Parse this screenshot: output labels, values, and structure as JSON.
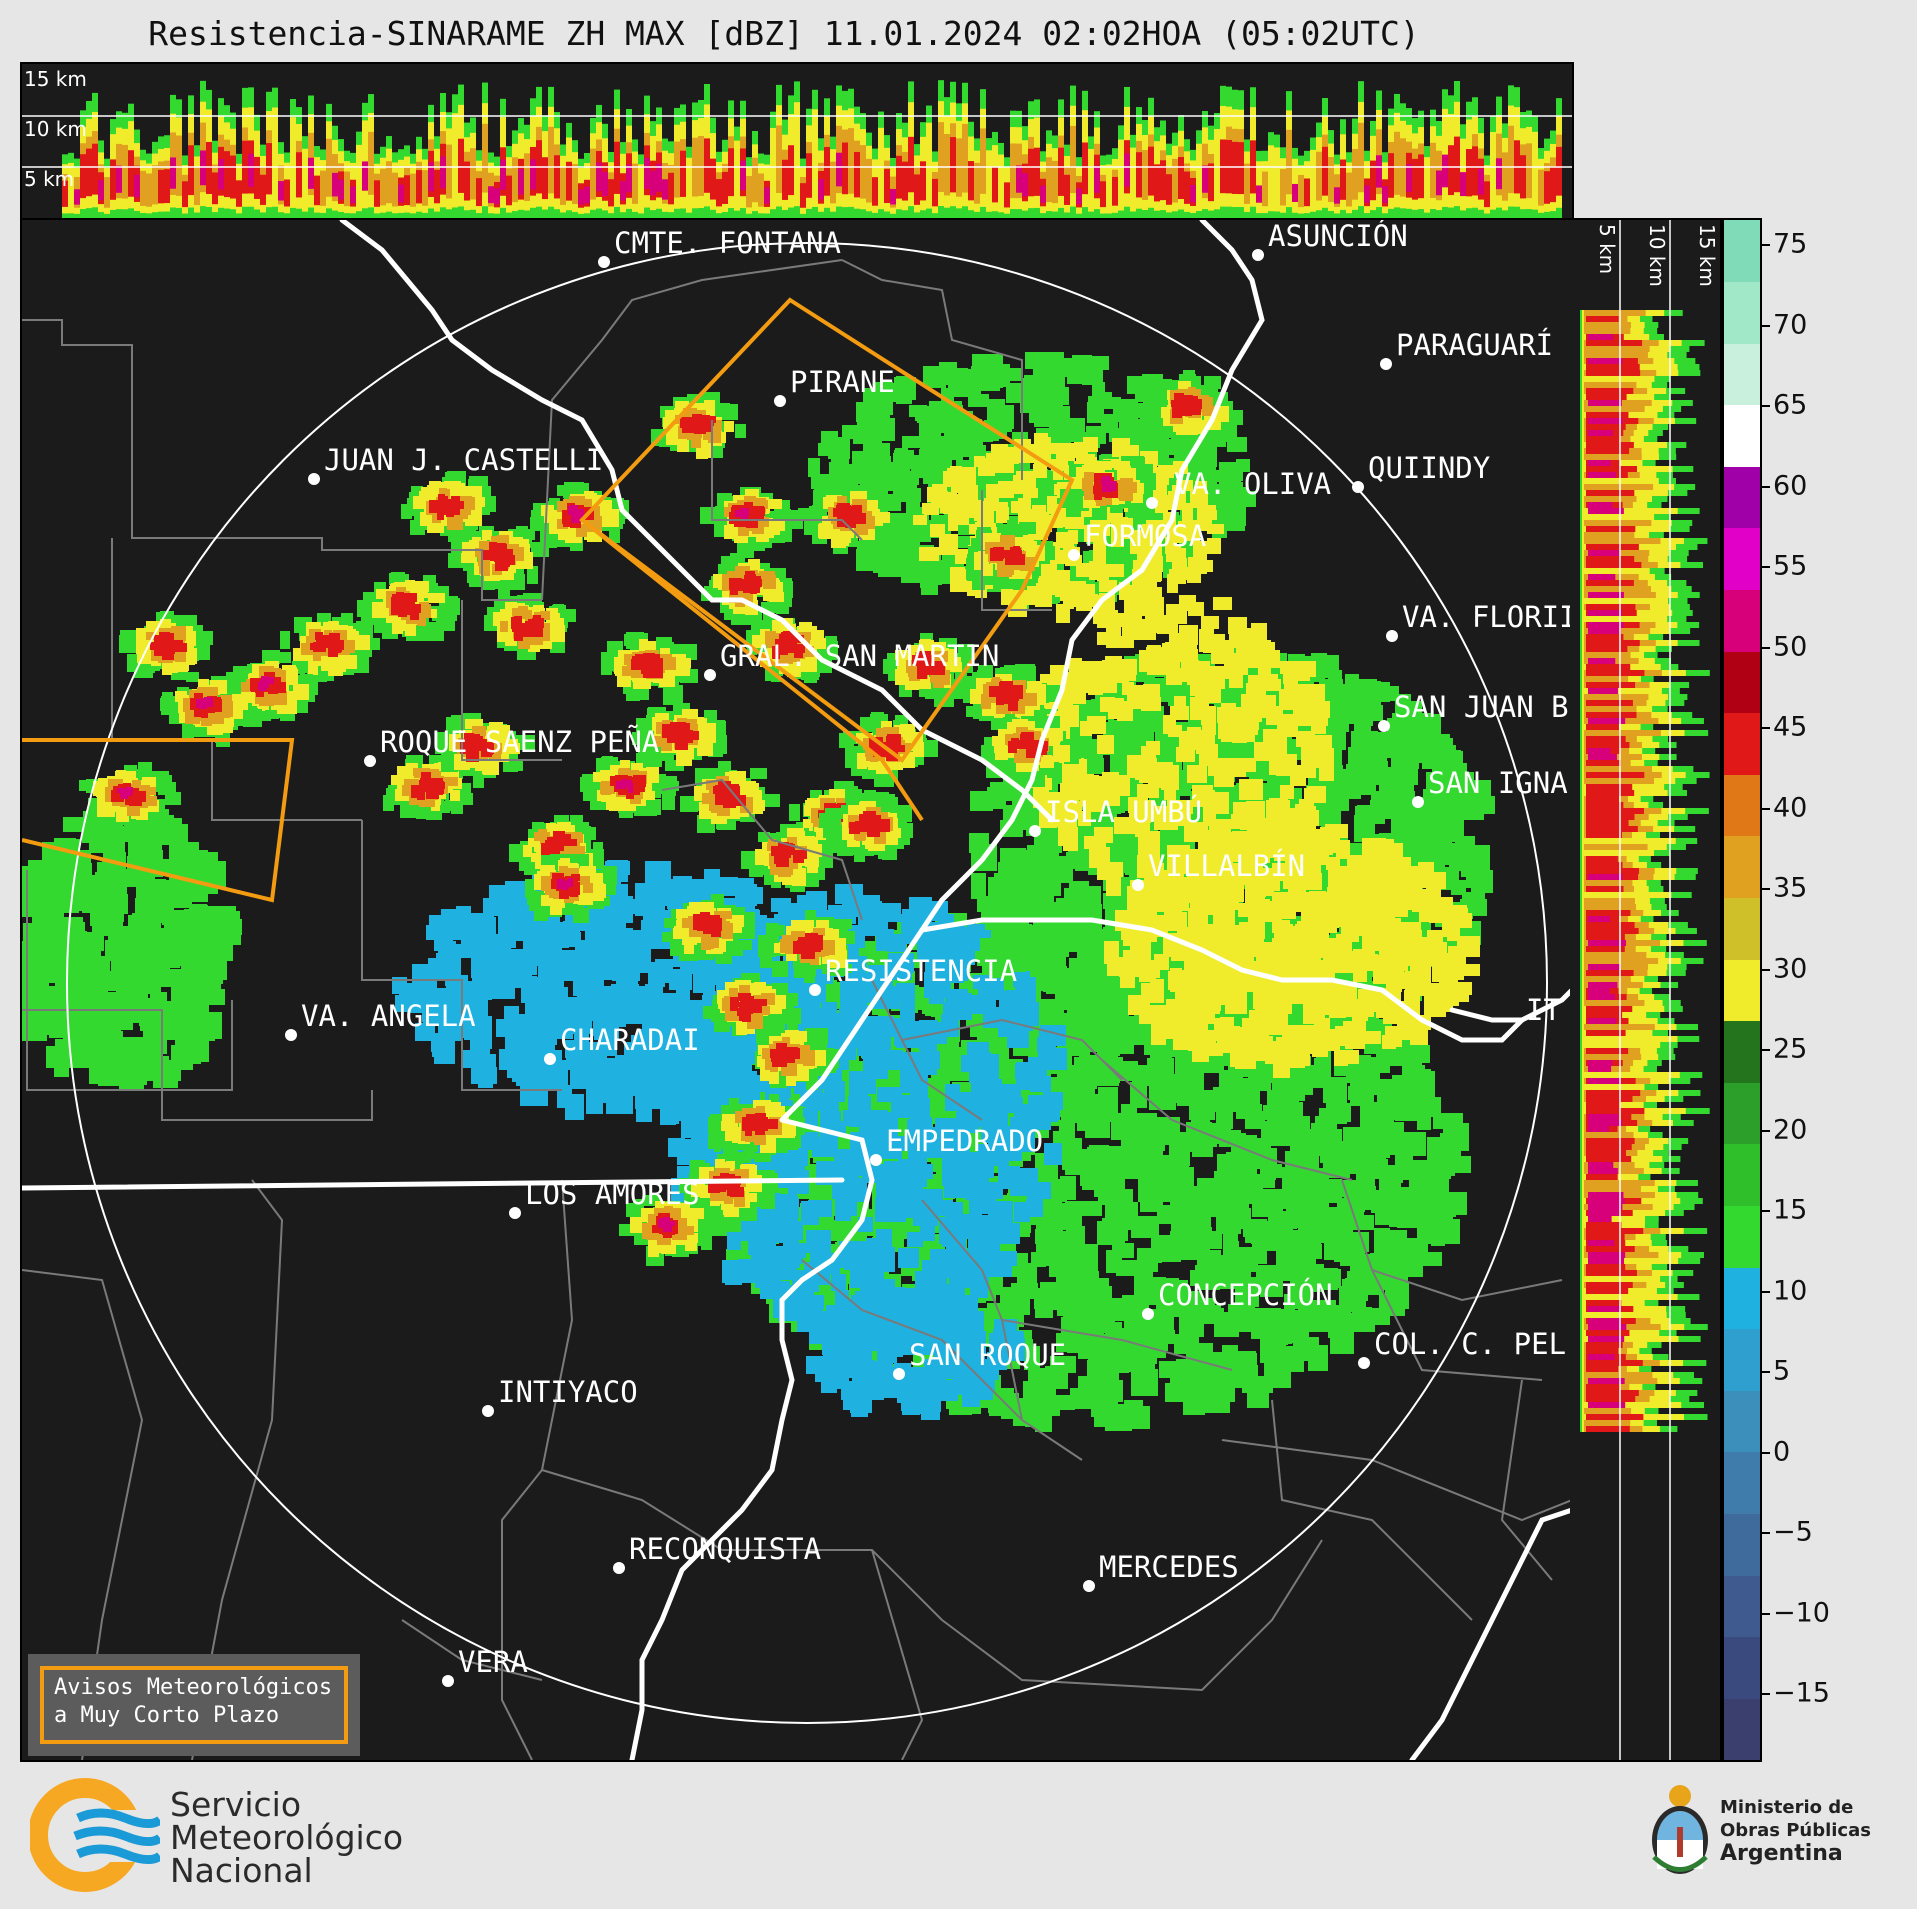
{
  "title": "Resistencia-SINARAME ZH MAX [dBZ] 11.01.2024 02:02HOA (05:02UTC)",
  "top_profile": {
    "altitude_labels": [
      "15 km",
      "10 km",
      "5 km"
    ]
  },
  "right_profile": {
    "altitude_labels": [
      "5 km",
      "10 km",
      "15 km"
    ]
  },
  "colorbar": {
    "ticks": [
      "75",
      "70",
      "65",
      "60",
      "55",
      "50",
      "45",
      "40",
      "35",
      "30",
      "25",
      "20",
      "15",
      "10",
      "5",
      "0",
      "−5",
      "−10",
      "−15"
    ],
    "colors": [
      "#3b3f6e",
      "#3b4a7e",
      "#3f5a8e",
      "#3e6a9c",
      "#3f7cab",
      "#3d8fbb",
      "#2f9fcf",
      "#1fb1e0",
      "#34d930",
      "#2fbf2a",
      "#2c9e2a",
      "#24741e",
      "#f0ec2c",
      "#cfc02a",
      "#e0a020",
      "#e07818",
      "#e01818",
      "#b00014",
      "#d8007a",
      "#e000c8",
      "#a000a8",
      "#ffffff",
      "#c8f0dc",
      "#a0e8c8",
      "#80dcb8"
    ]
  },
  "cities": [
    {
      "name": "CMTE. FONTANA"
    },
    {
      "name": "ASUNCIÓN"
    },
    {
      "name": "PARAGUARÍ"
    },
    {
      "name": "PIRANE"
    },
    {
      "name": "JUAN J. CASTELLI"
    },
    {
      "name": "VA. OLIVA"
    },
    {
      "name": "QUIINDY"
    },
    {
      "name": "FORMOSA"
    },
    {
      "name": "VA. FLORII"
    },
    {
      "name": "GRAL. SAN MARTIN"
    },
    {
      "name": "SAN JUAN B"
    },
    {
      "name": "ROQUE SAENZ PEÑA"
    },
    {
      "name": "SAN IGNA"
    },
    {
      "name": "ISLA UMBÚ"
    },
    {
      "name": "VILLALBÍN"
    },
    {
      "name": "RESISTENCIA"
    },
    {
      "name": "IT"
    },
    {
      "name": "VA. ANGELA"
    },
    {
      "name": "CHARADAI"
    },
    {
      "name": "EMPEDRADO"
    },
    {
      "name": "LOS AMORES"
    },
    {
      "name": "CONCEPCIÓN"
    },
    {
      "name": "SAN ROQUE"
    },
    {
      "name": "COL. C. PEL"
    },
    {
      "name": "INTIYACO"
    },
    {
      "name": "RECONQUISTA"
    },
    {
      "name": "MERCEDES"
    },
    {
      "name": "VERA"
    }
  ],
  "legend": {
    "line1": "Avisos Meteorológicos",
    "line2": "a Muy Corto Plazo"
  },
  "footer": {
    "smn_line1": "Servicio",
    "smn_line2": "Meteorológico",
    "smn_line3": "Nacional",
    "ministry_line1": "Ministerio de",
    "ministry_line2": "Obras Públicas",
    "ministry_line3": "Argentina"
  }
}
